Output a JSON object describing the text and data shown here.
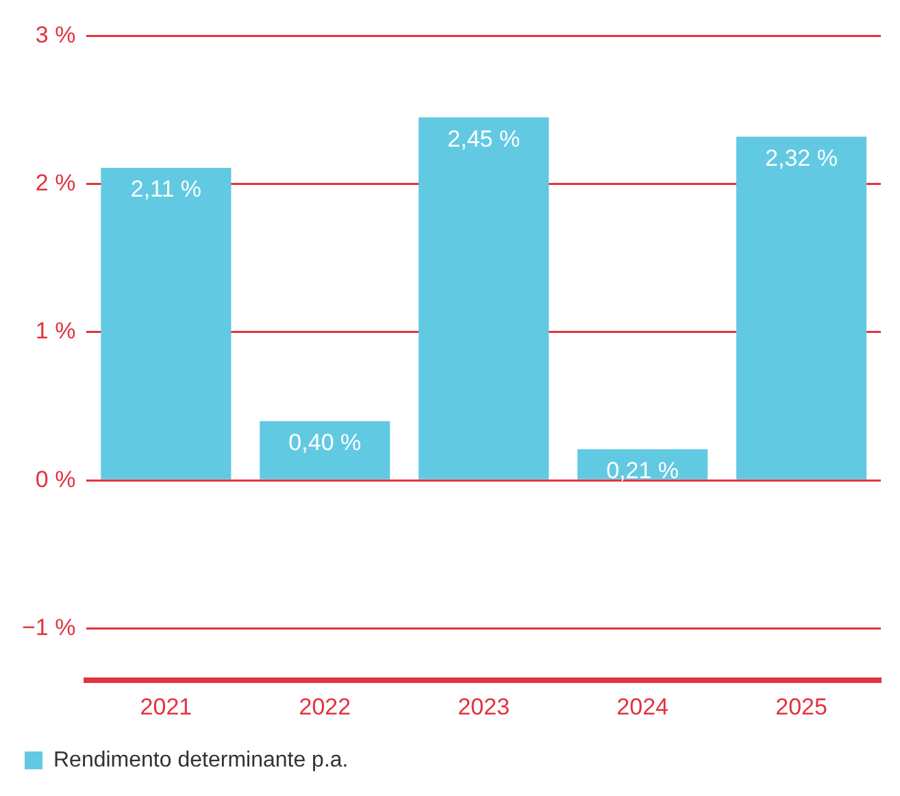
{
  "chart_data": {
    "type": "bar",
    "categories": [
      "2021",
      "2022",
      "2023",
      "2024",
      "2025"
    ],
    "series": [
      {
        "name": "Rendimento determinante p.a.",
        "color": "#62c9e3",
        "values": [
          2.11,
          0.4,
          2.45,
          0.21,
          2.32
        ],
        "value_labels": [
          "2,11 %",
          "0,40 %",
          "2,45 %",
          "0,21 %",
          "2,32 %"
        ]
      }
    ],
    "ylim": [
      -1.35,
      3
    ],
    "yticks": [
      {
        "value": -1,
        "label": "−1 %"
      },
      {
        "value": 0,
        "label": "0 %"
      },
      {
        "value": 1,
        "label": "1 %"
      },
      {
        "value": 2,
        "label": "2 %"
      },
      {
        "value": 3,
        "label": "3 %"
      }
    ],
    "grid": "y",
    "legend": "bottom"
  }
}
